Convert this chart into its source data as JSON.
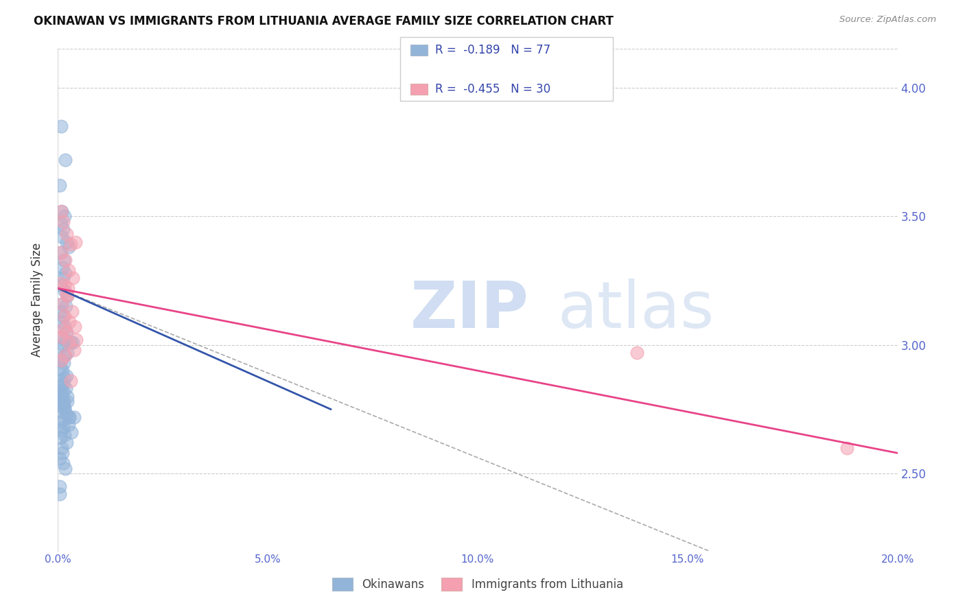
{
  "title": "OKINAWAN VS IMMIGRANTS FROM LITHUANIA AVERAGE FAMILY SIZE CORRELATION CHART",
  "source": "Source: ZipAtlas.com",
  "ylabel": "Average Family Size",
  "y_ticks": [
    2.5,
    3.0,
    3.5,
    4.0
  ],
  "x_min": 0.0,
  "x_max": 0.2,
  "y_min": 2.2,
  "y_max": 4.15,
  "legend1_R": "-0.189",
  "legend1_N": "77",
  "legend2_R": "-0.455",
  "legend2_N": "30",
  "label1": "Okinawans",
  "label2": "Immigrants from Lithuania",
  "blue_color": "#92B4D9",
  "pink_color": "#F4A0B0",
  "blue_line_color": "#3355AA",
  "pink_line_color": "#E84488",
  "dashed_line_color": "#AAAAAA",
  "okinawan_x": [
    0.0008,
    0.0018,
    0.0005,
    0.001,
    0.0015,
    0.0007,
    0.0012,
    0.0009,
    0.002,
    0.0025,
    0.0006,
    0.0014,
    0.0011,
    0.0017,
    0.0013,
    0.0008,
    0.0016,
    0.0022,
    0.001,
    0.0019,
    0.0007,
    0.0013,
    0.0009,
    0.0015,
    0.0021,
    0.0006,
    0.0018,
    0.003,
    0.0035,
    0.0012,
    0.0005,
    0.0023,
    0.0016,
    0.0008,
    0.0014,
    0.0006,
    0.0011,
    0.002,
    0.0015,
    0.0007,
    0.0013,
    0.0008,
    0.0019,
    0.0012,
    0.0006,
    0.001,
    0.0007,
    0.0022,
    0.0014,
    0.0009,
    0.0016,
    0.0005,
    0.0021,
    0.0028,
    0.0011,
    0.0007,
    0.0025,
    0.0013,
    0.0008,
    0.0032,
    0.0015,
    0.0006,
    0.002,
    0.001,
    0.0027,
    0.0004,
    0.0012,
    0.0018,
    0.0009,
    0.0014,
    0.0005,
    0.0022,
    0.0016,
    0.0006,
    0.0038,
    0.0004,
    0.0011
  ],
  "okinawan_y": [
    3.85,
    3.72,
    3.62,
    3.52,
    3.5,
    3.47,
    3.45,
    3.42,
    3.4,
    3.38,
    3.36,
    3.33,
    3.3,
    3.28,
    3.26,
    3.23,
    3.21,
    3.19,
    3.16,
    3.15,
    3.13,
    3.11,
    3.09,
    3.07,
    3.05,
    3.03,
    3.02,
    3.01,
    3.01,
    3.0,
    2.99,
    2.97,
    2.96,
    2.94,
    2.93,
    2.91,
    2.9,
    2.88,
    2.87,
    2.86,
    2.85,
    2.84,
    2.83,
    2.82,
    2.81,
    2.8,
    2.79,
    2.78,
    2.77,
    2.76,
    2.75,
    2.74,
    2.73,
    2.72,
    2.71,
    2.7,
    2.69,
    2.68,
    2.67,
    2.66,
    2.65,
    2.64,
    2.62,
    2.6,
    2.72,
    2.56,
    2.54,
    2.52,
    2.8,
    2.78,
    2.45,
    2.8,
    2.75,
    2.82,
    2.72,
    2.42,
    2.58
  ],
  "lithuania_x": [
    0.0007,
    0.0013,
    0.0021,
    0.0031,
    0.0008,
    0.0018,
    0.0025,
    0.0035,
    0.0042,
    0.0015,
    0.0022,
    0.0009,
    0.0033,
    0.0016,
    0.0028,
    0.004,
    0.0019,
    0.001,
    0.0026,
    0.0038,
    0.0017,
    0.0008,
    0.0044,
    0.0024,
    0.0013,
    0.003,
    0.0006,
    0.002,
    0.138,
    0.188
  ],
  "lithuania_y": [
    3.52,
    3.48,
    3.43,
    3.39,
    3.36,
    3.33,
    3.29,
    3.26,
    3.4,
    3.23,
    3.19,
    3.16,
    3.13,
    3.11,
    3.09,
    3.07,
    3.05,
    3.03,
    3.01,
    2.98,
    2.96,
    2.94,
    3.02,
    3.22,
    3.06,
    2.86,
    3.24,
    3.2,
    2.97,
    2.6
  ],
  "blue_trend_x": [
    0.0,
    0.065
  ],
  "blue_trend_y": [
    3.22,
    2.75
  ],
  "pink_trend_x": [
    0.0,
    0.2
  ],
  "pink_trend_y": [
    3.22,
    2.58
  ],
  "dashed_trend_x": [
    0.0,
    0.155
  ],
  "dashed_trend_y": [
    3.22,
    2.2
  ]
}
